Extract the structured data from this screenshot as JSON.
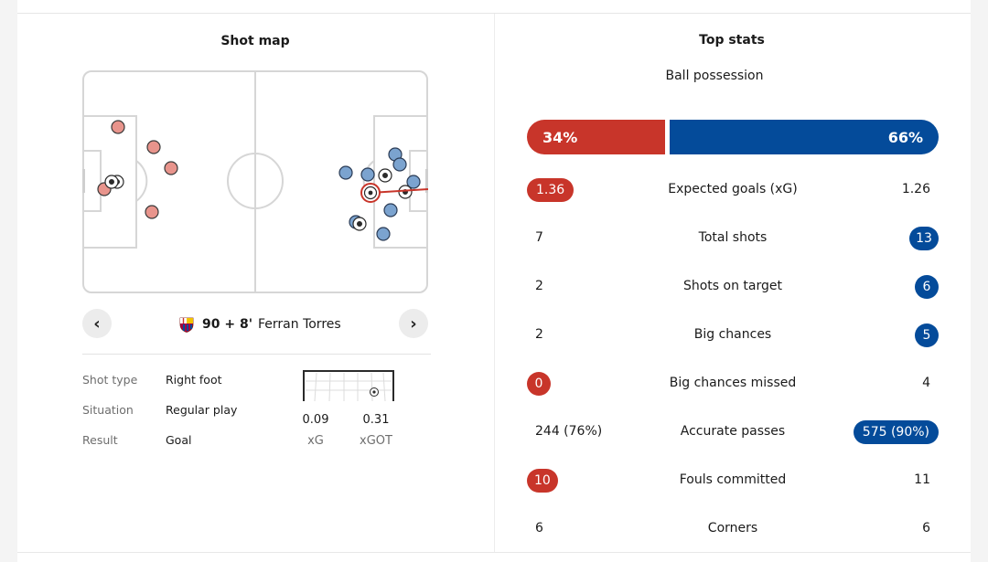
{
  "shot_map": {
    "title": "Shot map",
    "selected_shot": {
      "minute": "90 + 8'",
      "player": "Ferran Torres",
      "details": [
        {
          "label": "Shot type",
          "value": "Right foot"
        },
        {
          "label": "Situation",
          "value": "Regular play"
        },
        {
          "label": "Result",
          "value": "Goal"
        }
      ],
      "xg": "0.09",
      "xg_label": "xG",
      "xgot": "0.31",
      "xgot_label": "xGOT"
    },
    "nav": {
      "prev_icon": "chevron-left-icon",
      "next_icon": "chevron-right-icon"
    },
    "colors": {
      "home": "#e8948c",
      "away": "#7ba3cf",
      "selected": "#c8352a"
    }
  },
  "top_stats": {
    "title": "Top stats",
    "possession": {
      "label": "Ball possession",
      "home": "34%",
      "away": "66%",
      "home_pct": 34,
      "away_pct": 66
    },
    "rows": [
      {
        "label": "Expected goals (xG)",
        "home": "1.36",
        "away": "1.26",
        "highlight": "home"
      },
      {
        "label": "Total shots",
        "home": "7",
        "away": "13",
        "highlight": "away"
      },
      {
        "label": "Shots on target",
        "home": "2",
        "away": "6",
        "highlight": "away"
      },
      {
        "label": "Big chances",
        "home": "2",
        "away": "5",
        "highlight": "away"
      },
      {
        "label": "Big chances missed",
        "home": "0",
        "away": "4",
        "highlight": "home"
      },
      {
        "label": "Accurate passes",
        "home": "244 (76%)",
        "away": "575 (90%)",
        "highlight": "away"
      },
      {
        "label": "Fouls committed",
        "home": "10",
        "away": "11",
        "highlight": "home"
      },
      {
        "label": "Corners",
        "home": "6",
        "away": "6",
        "highlight": "none"
      }
    ],
    "colors": {
      "home": "#c8352a",
      "away": "#044b9a"
    }
  }
}
